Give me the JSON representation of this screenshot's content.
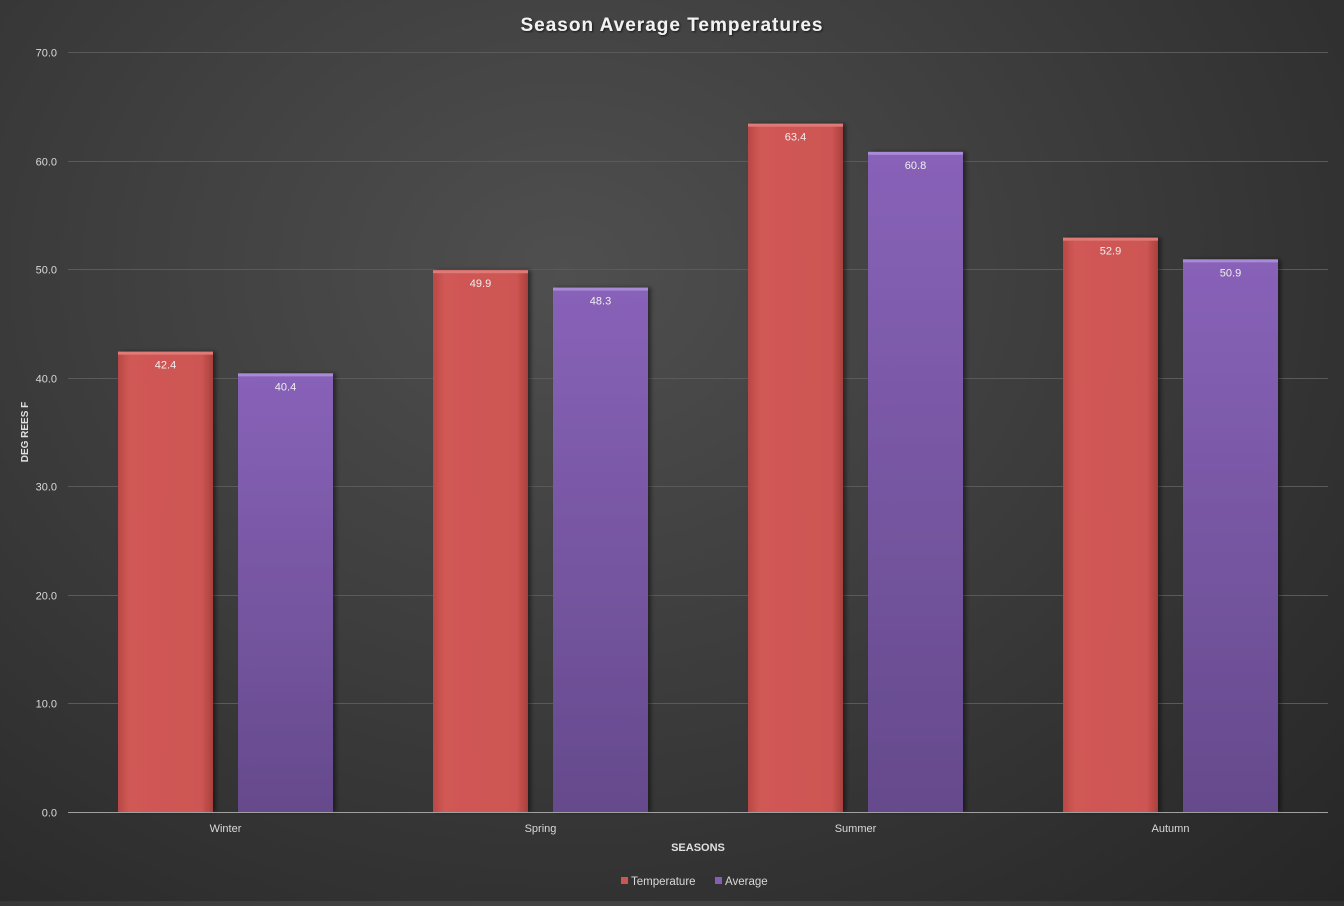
{
  "colors": {
    "temperature": "#cd5552",
    "average": "#8460b4",
    "text": "#d9d9d9",
    "grid": "#5c5c5c",
    "axis": "#9a9a9a"
  },
  "chart_data": {
    "type": "bar",
    "title": "Season Average Temperatures",
    "xlabel": "SEASONS",
    "ylabel": "DEG REES F",
    "categories": [
      "Winter",
      "Spring",
      "Summer",
      "Autumn"
    ],
    "series": [
      {
        "name": "Temperature",
        "values": [
          42.4,
          49.9,
          63.4,
          52.9
        ],
        "labels": [
          "42.4",
          "49.9",
          "63.4",
          "52.9"
        ]
      },
      {
        "name": "Average",
        "values": [
          40.4,
          48.3,
          60.8,
          50.9
        ],
        "labels": [
          "40.4",
          "48.3",
          "60.8",
          "50.9"
        ]
      }
    ],
    "ylim": [
      0,
      70
    ],
    "yticks": [
      "0.0",
      "10.0",
      "20.0",
      "30.0",
      "40.0",
      "50.0",
      "60.0",
      "70.0"
    ],
    "grid": true,
    "legend": "bottom"
  }
}
